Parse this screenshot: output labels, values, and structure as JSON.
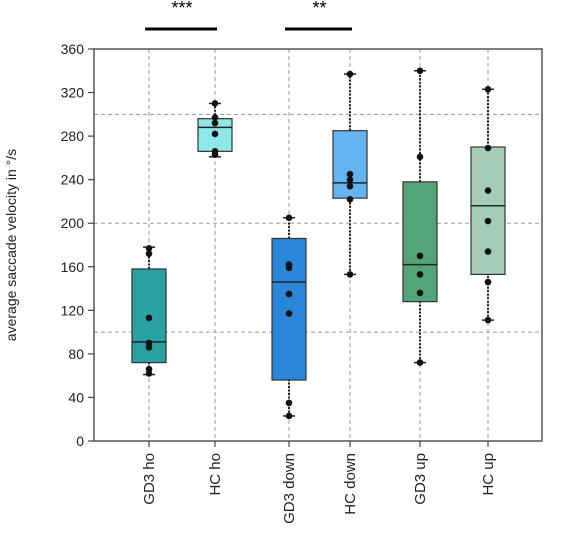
{
  "chart_data": {
    "type": "box",
    "ylabel": "average saccade velocity in °/s",
    "xlabel": "",
    "title": "",
    "ylim": [
      0,
      360
    ],
    "yticks": [
      0,
      40,
      80,
      120,
      160,
      200,
      240,
      280,
      320,
      360
    ],
    "reference_lines": [
      100,
      200,
      300
    ],
    "grid": true,
    "categories": [
      "GD3 ho",
      "HC ho",
      "GD3 down",
      "HC down",
      "GD3 up",
      "HC up"
    ],
    "boxes": [
      {
        "name": "GD3 ho",
        "color": "#2aa1a3",
        "whisker_low": 61,
        "q1": 72,
        "median": 91,
        "q3": 158,
        "whisker_high": 178,
        "points": [
          62,
          66,
          86,
          90,
          113,
          172,
          177
        ]
      },
      {
        "name": "HC ho",
        "color": "#8ee8e8",
        "whisker_low": 261,
        "q1": 266,
        "median": 288,
        "q3": 296,
        "whisker_high": 310,
        "points": [
          263,
          266,
          282,
          292,
          297,
          310
        ]
      },
      {
        "name": "GD3 down",
        "color": "#2a86d8",
        "whisker_low": 23,
        "q1": 56,
        "median": 146,
        "q3": 186,
        "whisker_high": 205,
        "points": [
          23,
          35,
          117,
          135,
          159,
          162,
          205
        ]
      },
      {
        "name": "HC down",
        "color": "#64b4f2",
        "whisker_low": 153,
        "q1": 223,
        "median": 237,
        "q3": 285,
        "whisker_high": 337,
        "points": [
          153,
          222,
          234,
          240,
          245,
          337
        ]
      },
      {
        "name": "GD3 up",
        "color": "#54a477",
        "whisker_low": 72,
        "q1": 128,
        "median": 162,
        "q3": 238,
        "whisker_high": 340,
        "points": [
          72,
          136,
          153,
          170,
          261,
          340
        ]
      },
      {
        "name": "HC up",
        "color": "#a4ccb8",
        "whisker_low": 111,
        "q1": 153,
        "median": 216,
        "q3": 270,
        "whisker_high": 323,
        "points": [
          111,
          146,
          174,
          202,
          230,
          269,
          323
        ]
      }
    ],
    "significance": [
      {
        "label": "***",
        "from": "GD3 ho",
        "to": "HC ho"
      },
      {
        "label": "**",
        "from": "GD3 down",
        "to": "HC down"
      }
    ]
  }
}
